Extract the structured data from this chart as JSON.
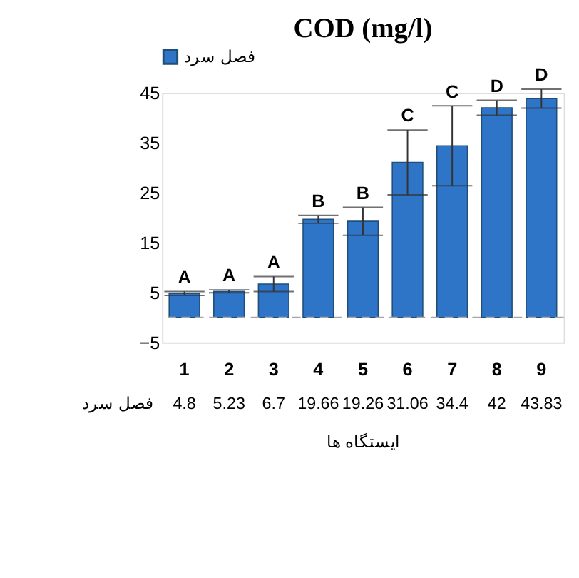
{
  "chart_data": {
    "type": "bar",
    "title": "COD (mg/l)",
    "xlabel": "ایستگاه ها",
    "categories": [
      "1",
      "2",
      "3",
      "4",
      "5",
      "6",
      "7",
      "8",
      "9"
    ],
    "series": [
      {
        "name": "فصل سرد",
        "color": "#2e75c8",
        "values": [
          4.8,
          5.23,
          6.7,
          19.66,
          19.26,
          31.06,
          34.4,
          42,
          43.83
        ],
        "errors": [
          0.4,
          0.3,
          1.5,
          0.8,
          2.8,
          6.5,
          8,
          1.5,
          1.9
        ]
      }
    ],
    "annotations": [
      "A",
      "A",
      "A",
      "B",
      "B",
      "C",
      "C",
      "D",
      "D"
    ],
    "ylim": [
      -5,
      45
    ],
    "yticks": [
      -5,
      5,
      15,
      25,
      35,
      45
    ],
    "ref_lines": [
      {
        "axis": "y",
        "value": 0,
        "color": "#a6a6a6",
        "line_style": "dashed"
      }
    ],
    "data_labels": true,
    "legend": "top",
    "grid": false
  }
}
